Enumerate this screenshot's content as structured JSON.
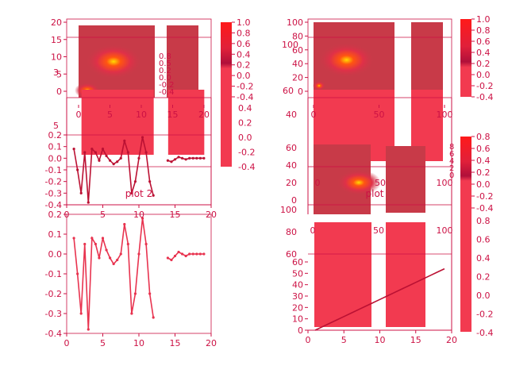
{
  "figure": {
    "background": "#ffffff"
  },
  "colors": {
    "axis": "#cc1144",
    "line": "#e8334f",
    "line_dark": "#bb1133",
    "fill": "#f23a50",
    "cbar_top": "#ff1a1a",
    "cbar_mid": "#b0103a",
    "cbar_bottom": "#f23a50",
    "field": "#c83a48",
    "hot": "#ff5511",
    "core": "#ffdd00"
  },
  "chart_data": [
    {
      "id": "left-top-image",
      "type": "heatmap",
      "xlim": [
        0,
        20
      ],
      "ylim": [
        0,
        20
      ],
      "xticks": [
        "0",
        "5",
        "10",
        "15",
        "20"
      ],
      "yticks": [
        "0",
        "5",
        "10",
        "15",
        "20"
      ],
      "colorbar_ticks": [
        "1.0",
        "0.8",
        "0.6",
        "0.4",
        "0.2",
        "0.0",
        "-0.2",
        "-0.4"
      ],
      "hotspots": [
        {
          "x": 10,
          "y": 10
        },
        {
          "x": 2.5,
          "y": 2
        }
      ],
      "overlapping_tick_labels": [
        "0.8",
        "0.5",
        "0.2",
        "0.0",
        "-0.2",
        "-0.4"
      ]
    },
    {
      "id": "left-bar-overlay",
      "type": "bar",
      "xlim": [
        0,
        20
      ],
      "ylim": [
        0,
        10
      ],
      "yticks": [
        "5"
      ],
      "bars": [
        {
          "x_start": 1.5,
          "x_end": 11.5,
          "height": 10
        },
        {
          "x_start": 13.5,
          "x_end": 18.5,
          "height": 10
        }
      ]
    },
    {
      "id": "left-mid-line",
      "type": "line",
      "title": "plot 2",
      "xlim": [
        0,
        20
      ],
      "ylim": [
        -0.4,
        0.2
      ],
      "xticks": [
        "0",
        "5",
        "10",
        "15",
        "20"
      ],
      "yticks": [
        "0.2",
        "0.1",
        "0.0",
        "-0.1",
        "-0.2",
        "-0.3",
        "-0.4"
      ],
      "series": [
        {
          "x": [
            1,
            1.5,
            2,
            2.5,
            3,
            3.5,
            4,
            4.5,
            5,
            5.5,
            6,
            6.5,
            7,
            7.5,
            8,
            8.5,
            9,
            9.5,
            10,
            10.5,
            11,
            11.5,
            12
          ],
          "y": [
            0.08,
            -0.1,
            -0.3,
            0.05,
            -0.38,
            0.08,
            0.05,
            -0.02,
            0.08,
            0.02,
            -0.02,
            -0.05,
            -0.03,
            0.0,
            0.15,
            0.05,
            -0.3,
            -0.2,
            0.0,
            0.18,
            0.05,
            -0.2,
            -0.32
          ]
        },
        {
          "x": [
            14,
            14.5,
            15,
            15.5,
            16,
            16.5,
            17,
            17.5,
            18,
            18.5,
            19
          ],
          "y": [
            -0.02,
            -0.03,
            -0.01,
            0.01,
            0.0,
            -0.01,
            0.0,
            0.0,
            0.0,
            0.0,
            0.0
          ]
        }
      ]
    },
    {
      "id": "left-bottom-line",
      "type": "line",
      "xlim": [
        0,
        20
      ],
      "ylim": [
        -0.4,
        0.2
      ],
      "xticks": [
        "0",
        "5",
        "10",
        "15",
        "20"
      ],
      "yticks": [
        "0.2",
        "0.1",
        "0.0",
        "-0.1",
        "-0.2",
        "-0.3",
        "-0.4"
      ],
      "series": [
        {
          "x": [
            1,
            1.5,
            2,
            2.5,
            3,
            3.5,
            4,
            4.5,
            5,
            5.5,
            6,
            6.5,
            7,
            7.5,
            8,
            8.5,
            9,
            9.5,
            10,
            10.5,
            11,
            11.5,
            12
          ],
          "y": [
            0.08,
            -0.1,
            -0.3,
            0.05,
            -0.38,
            0.08,
            0.05,
            -0.02,
            0.08,
            0.02,
            -0.02,
            -0.05,
            -0.03,
            0.0,
            0.15,
            0.05,
            -0.3,
            -0.2,
            0.0,
            0.18,
            0.05,
            -0.2,
            -0.32
          ]
        },
        {
          "x": [
            14,
            14.5,
            15,
            15.5,
            16,
            16.5,
            17,
            17.5,
            18,
            18.5,
            19
          ],
          "y": [
            -0.02,
            -0.03,
            -0.01,
            0.01,
            0.0,
            -0.01,
            0.0,
            0.0,
            0.0,
            0.0,
            0.0
          ]
        }
      ]
    },
    {
      "id": "right-top-image",
      "type": "heatmap",
      "xlim": [
        0,
        100
      ],
      "ylim": [
        0,
        100
      ],
      "xticks": [
        "0",
        "50",
        "100"
      ],
      "yticks": [
        "100",
        "80",
        "60",
        "40",
        "20",
        "0"
      ],
      "colorbar_ticks": [
        "1.0",
        "0.8",
        "0.6",
        "0.4",
        "0.2",
        "0.0",
        "-0.2",
        "-0.4"
      ],
      "hotspots": [
        {
          "x": 50,
          "y": 50
        }
      ],
      "overlapping_tick_labels": [
        "100",
        "60"
      ]
    },
    {
      "id": "right-middle-image",
      "type": "heatmap",
      "title": "plot",
      "xlim": [
        0,
        100
      ],
      "ylim": [
        0,
        100
      ],
      "xticks": [
        "0",
        "50",
        "100"
      ],
      "yticks": [
        "60",
        "40",
        "20",
        "0"
      ],
      "colorbar_ticks": [
        "0.8",
        "0.6",
        "0.4",
        "0.2",
        "0.0",
        "-0.2",
        "-0.4"
      ],
      "hotspots": [
        {
          "x": 30,
          "y": 40
        }
      ],
      "overlapping_tick_labels": [
        "8",
        "6",
        "4",
        "2",
        "0"
      ]
    },
    {
      "id": "right-bottom-line",
      "type": "line",
      "xlim": [
        0,
        20
      ],
      "ylim": [
        0,
        60
      ],
      "xticks": [
        "0",
        "5",
        "10",
        "15",
        "20"
      ],
      "yticks": [
        "60",
        "50",
        "40",
        "30",
        "20",
        "10",
        "0"
      ],
      "series": [
        {
          "x": [
            1,
            2,
            3,
            4,
            5,
            6,
            7,
            8,
            9,
            10,
            11,
            12,
            13,
            14,
            15,
            16,
            17,
            18,
            19
          ],
          "y": [
            0,
            3,
            6,
            9,
            12,
            15,
            18,
            21,
            24,
            27,
            30,
            33,
            36,
            39,
            42,
            45,
            48,
            51,
            54
          ]
        }
      ]
    },
    {
      "id": "right-bar-overlay",
      "type": "bar",
      "xlim": [
        0,
        100
      ],
      "ylim": [
        0,
        100
      ],
      "xticks": [
        "0",
        "50",
        "100"
      ],
      "yticks": [
        "100",
        "80",
        "60"
      ],
      "overlapping_x_tick_labels": [
        "10",
        "20"
      ],
      "bars": [
        {
          "x_start": 5,
          "x_end": 45,
          "height": 100
        },
        {
          "x_start": 50,
          "x_end": 90,
          "height": 100
        }
      ]
    },
    {
      "id": "right-colorbar-extra",
      "type": "heatmap",
      "colorbar_ticks": [
        "0.8",
        "0.6",
        "0.4",
        "0.2",
        "0.0",
        "-0.2",
        "-0.4"
      ]
    }
  ]
}
